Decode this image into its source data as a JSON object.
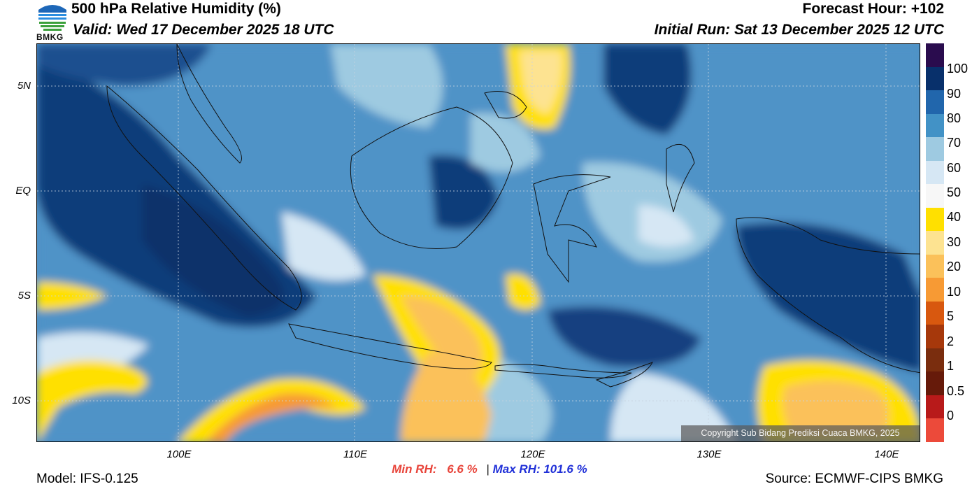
{
  "header": {
    "title": "500 hPa Relative Humidity (%)",
    "valid": "Valid: Wed 17 December 2025 18 UTC",
    "forecast_hour": "Forecast Hour: +102",
    "initial_run": "Initial Run: Sat 13 December 2025 12 UTC",
    "logo_text": "BMKG"
  },
  "axes": {
    "lat_labels": [
      "5N",
      "EQ",
      "5S",
      "10S"
    ],
    "lon_labels": [
      "100E",
      "110E",
      "120E",
      "130E",
      "140E"
    ]
  },
  "colorbar": {
    "labels": [
      "100",
      "90",
      "80",
      "70",
      "60",
      "50",
      "40",
      "30",
      "20",
      "10",
      "5",
      "2",
      "1",
      "0.5",
      "0"
    ],
    "colors": [
      "#2a0c4e",
      "#08306b",
      "#2166ac",
      "#4292c6",
      "#9ecae1",
      "#d6e7f4",
      "#f7f7f7",
      "#ffe000",
      "#fde391",
      "#fbc15a",
      "#f79a34",
      "#d8580f",
      "#a6380b",
      "#7a2d0e",
      "#661a0a",
      "#b81a1a",
      "#ec4a3a"
    ]
  },
  "stats": {
    "min_label": "Min RH:",
    "min_value": "6.6 %",
    "separator": "|",
    "max_label": "Max RH:",
    "max_value": "101.6 %"
  },
  "footer": {
    "model": "Model: IFS-0.125",
    "source": "Source: ECMWF-CIPS BMKG",
    "copyright": "Copyright Sub Bidang Prediksi Cuaca BMKG, 2025"
  }
}
